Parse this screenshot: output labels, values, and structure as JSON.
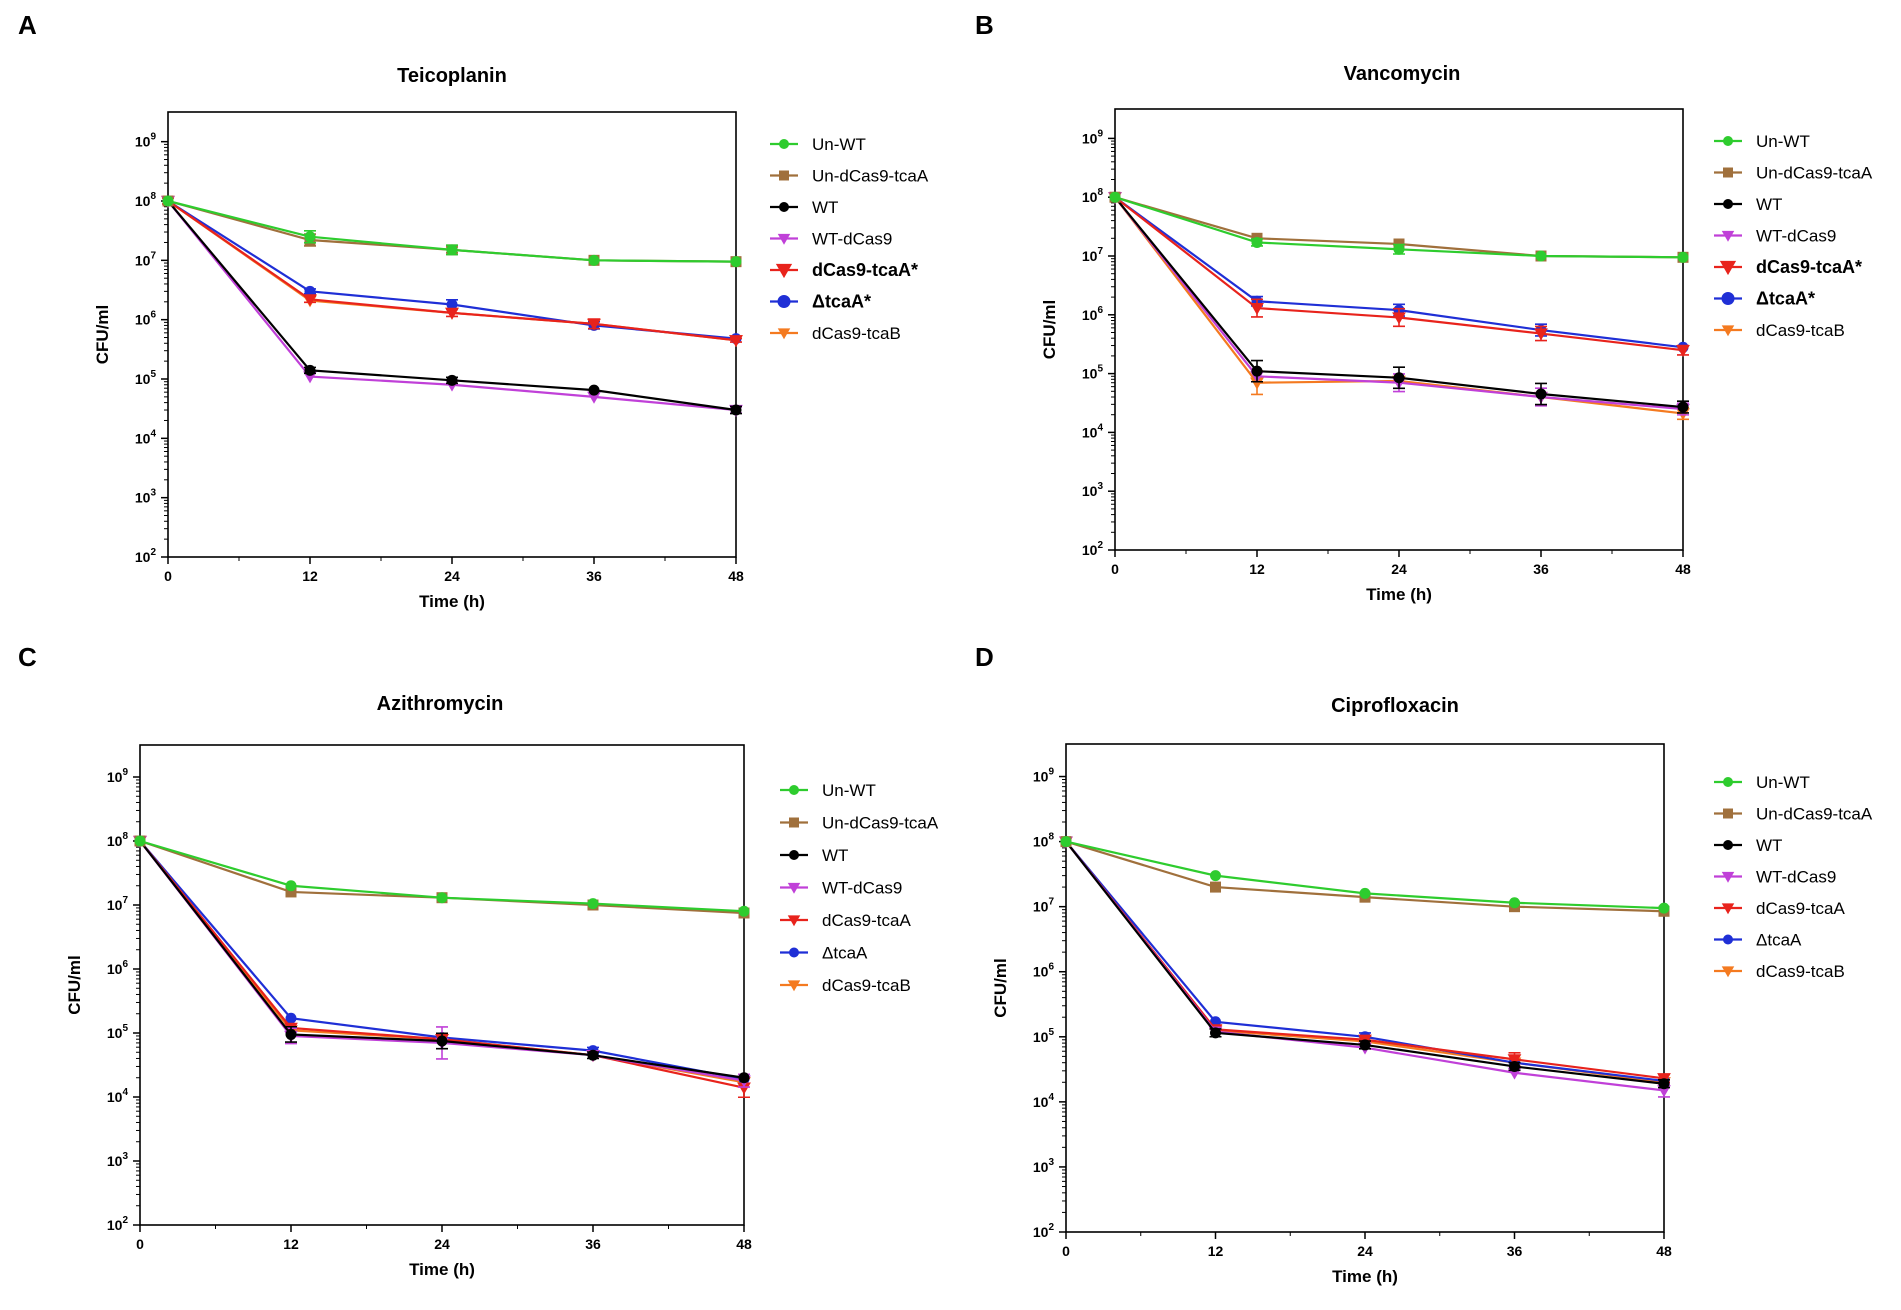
{
  "figure": {
    "colors": {
      "Un-WT": "#2ecc2e",
      "Un-dCas9-tcaA": "#a0703c",
      "WT": "#000000",
      "WT-dCas9": "#c040d8",
      "dCas9-tcaA": "#e8231c",
      "dCas9-tcaA*": "#e8231c",
      "ΔtcaA": "#1f2fd6",
      "ΔtcaA*": "#1f2fd6",
      "dCas9-tcaB": "#f47a20"
    },
    "markers": {
      "Un-WT": "circle",
      "Un-dCas9-tcaA": "square",
      "WT": "circle",
      "WT-dCas9": "triangle-down",
      "dCas9-tcaA": "triangle-down",
      "dCas9-tcaA*": "triangle-down",
      "ΔtcaA": "circle",
      "ΔtcaA*": "circle",
      "dCas9-tcaB": "triangle-down"
    }
  },
  "chart_data": [
    {
      "panel": "A",
      "type": "line",
      "title": "Teicoplanin",
      "xlabel": "Time (h)",
      "ylabel": "CFU/ml",
      "yscale": "log",
      "x": [
        0,
        12,
        24,
        36,
        48
      ],
      "xticks": [
        "0",
        "12",
        "24",
        "36",
        "48"
      ],
      "yticks": [
        2,
        3,
        4,
        5,
        6,
        7,
        8,
        9
      ],
      "ylim_exp": [
        2,
        9.5
      ],
      "legend_position": "right",
      "bold_legend": [
        "dCas9-tcaA*",
        "ΔtcaA*"
      ],
      "series": [
        {
          "name": "Un-WT",
          "values": [
            100000000.0,
            25000000.0,
            15000000.0,
            10000000.0,
            9500000.0
          ],
          "err": [
            0,
            0.1,
            0.08,
            0,
            0
          ]
        },
        {
          "name": "Un-dCas9-tcaA",
          "values": [
            100000000.0,
            22000000.0,
            15000000.0,
            10000000.0,
            9500000.0
          ],
          "err": [
            0,
            0.1,
            0.05,
            0,
            0
          ]
        },
        {
          "name": "WT",
          "values": [
            100000000.0,
            140000.0,
            95000.0,
            65000.0,
            30000.0
          ],
          "err": [
            0,
            0.05,
            0.05,
            0,
            0.06
          ]
        },
        {
          "name": "WT-dCas9",
          "values": [
            100000000.0,
            110000.0,
            80000.0,
            50000.0,
            30000.0
          ],
          "err": [
            0,
            0,
            0,
            0,
            0.05
          ]
        },
        {
          "name": "dCas9-tcaA*",
          "values": [
            100000000.0,
            2200000.0,
            1300000.0,
            850000.0,
            450000.0
          ],
          "err": [
            0.05,
            0.05,
            0.06,
            0.08,
            0.03
          ]
        },
        {
          "name": "ΔtcaA*",
          "values": [
            100000000.0,
            3000000.0,
            1800000.0,
            800000.0,
            480000.0
          ],
          "err": [
            0,
            0.04,
            0.08,
            0.06,
            0
          ]
        },
        {
          "name": "dCas9-tcaB",
          "values": [
            100000000.0,
            2100000.0,
            1300000.0,
            850000.0,
            450000.0
          ],
          "err": [
            0,
            0,
            0,
            0,
            0
          ]
        }
      ]
    },
    {
      "panel": "B",
      "type": "line",
      "title": "Vancomycin",
      "xlabel": "Time (h)",
      "ylabel": "CFU/ml",
      "yscale": "log",
      "x": [
        0,
        12,
        24,
        36,
        48
      ],
      "xticks": [
        "0",
        "12",
        "24",
        "36",
        "48"
      ],
      "yticks": [
        2,
        3,
        4,
        5,
        6,
        7,
        8,
        9
      ],
      "ylim_exp": [
        2,
        9.5
      ],
      "legend_position": "right",
      "bold_legend": [
        "dCas9-tcaA*",
        "ΔtcaA*"
      ],
      "series": [
        {
          "name": "Un-WT",
          "values": [
            100000000.0,
            17000000.0,
            13000000.0,
            10000000.0,
            9500000.0
          ],
          "err": [
            0,
            0.06,
            0.08,
            0,
            0
          ]
        },
        {
          "name": "Un-dCas9-tcaA",
          "values": [
            100000000.0,
            20000000.0,
            16000000.0,
            10000000.0,
            9500000.0
          ],
          "err": [
            0,
            0,
            0,
            0,
            0
          ]
        },
        {
          "name": "WT",
          "values": [
            100000000.0,
            110000.0,
            85000.0,
            45000.0,
            27000.0
          ],
          "err": [
            0,
            0.18,
            0.18,
            0.18,
            0.1
          ]
        },
        {
          "name": "WT-dCas9",
          "values": [
            100000000.0,
            90000.0,
            70000.0,
            40000.0,
            25000.0
          ],
          "err": [
            0,
            0,
            0.15,
            0.15,
            0.1
          ]
        },
        {
          "name": "dCas9-tcaA*",
          "values": [
            100000000.0,
            1300000.0,
            900000.0,
            480000.0,
            250000.0
          ],
          "err": [
            0,
            0.15,
            0.15,
            0.12,
            0.08
          ]
        },
        {
          "name": "ΔtcaA*",
          "values": [
            100000000.0,
            1700000.0,
            1200000.0,
            550000.0,
            280000.0
          ],
          "err": [
            0,
            0.08,
            0.1,
            0.1,
            0
          ]
        },
        {
          "name": "dCas9-tcaB",
          "values": [
            100000000.0,
            70000.0,
            75000.0,
            40000.0,
            21000.0
          ],
          "err": [
            0,
            0.2,
            0,
            0,
            0.1
          ]
        }
      ]
    },
    {
      "panel": "C",
      "type": "line",
      "title": "Azithromycin",
      "xlabel": "Time (h)",
      "ylabel": "CFU/ml",
      "yscale": "log",
      "x": [
        0,
        12,
        24,
        36,
        48
      ],
      "xticks": [
        "0",
        "12",
        "24",
        "36",
        "48"
      ],
      "yticks": [
        2,
        3,
        4,
        5,
        6,
        7,
        8,
        9
      ],
      "ylim_exp": [
        2,
        9.5
      ],
      "legend_position": "right",
      "bold_legend": [],
      "series": [
        {
          "name": "Un-WT",
          "values": [
            100000000.0,
            20000000.0,
            13000000.0,
            10500000.0,
            8000000.0
          ],
          "err": [
            0,
            0,
            0,
            0,
            0
          ]
        },
        {
          "name": "Un-dCas9-tcaA",
          "values": [
            100000000.0,
            16000000.0,
            13000000.0,
            10000000.0,
            7500000.0
          ],
          "err": [
            0,
            0,
            0,
            0,
            0
          ]
        },
        {
          "name": "WT",
          "values": [
            100000000.0,
            95000.0,
            75000.0,
            45000.0,
            20000.0
          ],
          "err": [
            0,
            0.12,
            0.12,
            0.05,
            0
          ]
        },
        {
          "name": "WT-dCas9",
          "values": [
            100000000.0,
            90000.0,
            70000.0,
            45000.0,
            18000.0
          ],
          "err": [
            0,
            0.12,
            0.25,
            0,
            0.1
          ]
        },
        {
          "name": "dCas9-tcaA",
          "values": [
            100000000.0,
            120000.0,
            80000.0,
            45000.0,
            14000.0
          ],
          "err": [
            0,
            0,
            0,
            0,
            0.15
          ]
        },
        {
          "name": "ΔtcaA",
          "values": [
            100000000.0,
            170000.0,
            85000.0,
            53000.0,
            19000.0
          ],
          "err": [
            0,
            0,
            0,
            0.05,
            0
          ]
        },
        {
          "name": "dCas9-tcaB",
          "values": [
            100000000.0,
            110000.0,
            80000.0,
            45000.0,
            17000.0
          ],
          "err": [
            0,
            0,
            0,
            0,
            0
          ]
        }
      ]
    },
    {
      "panel": "D",
      "type": "line",
      "title": "Ciprofloxacin",
      "xlabel": "Time (h)",
      "ylabel": "CFU/ml",
      "yscale": "log",
      "x": [
        0,
        12,
        24,
        36,
        48
      ],
      "xticks": [
        "0",
        "12",
        "24",
        "36",
        "48"
      ],
      "yticks": [
        2,
        3,
        4,
        5,
        6,
        7,
        8,
        9
      ],
      "ylim_exp": [
        2,
        9.5
      ],
      "legend_position": "right",
      "bold_legend": [],
      "series": [
        {
          "name": "Un-WT",
          "values": [
            100000000.0,
            30000000.0,
            16000000.0,
            11500000.0,
            9500000.0
          ],
          "err": [
            0,
            0,
            0,
            0,
            0
          ]
        },
        {
          "name": "Un-dCas9-tcaA",
          "values": [
            100000000.0,
            20000000.0,
            14000000.0,
            10000000.0,
            8500000.0
          ],
          "err": [
            0,
            0,
            0,
            0,
            0
          ]
        },
        {
          "name": "WT",
          "values": [
            100000000.0,
            115000.0,
            75000.0,
            35000.0,
            19000.0
          ],
          "err": [
            0,
            0.06,
            0.06,
            0.06,
            0.06
          ]
        },
        {
          "name": "WT-dCas9",
          "values": [
            100000000.0,
            120000.0,
            68000.0,
            28000.0,
            15000.0
          ],
          "err": [
            0,
            0,
            0,
            0,
            0.1
          ]
        },
        {
          "name": "dCas9-tcaA",
          "values": [
            100000000.0,
            130000.0,
            90000.0,
            45000.0,
            23000.0
          ],
          "err": [
            0,
            0,
            0,
            0.1,
            0.06
          ]
        },
        {
          "name": "ΔtcaA",
          "values": [
            100000000.0,
            170000.0,
            100000.0,
            40000.0,
            21000.0
          ],
          "err": [
            0,
            0,
            0.06,
            0,
            0
          ]
        },
        {
          "name": "dCas9-tcaB",
          "values": [
            100000000.0,
            125000.0,
            85000.0,
            40000.0,
            20000.0
          ],
          "err": [
            0,
            0,
            0,
            0,
            0
          ]
        }
      ]
    }
  ]
}
